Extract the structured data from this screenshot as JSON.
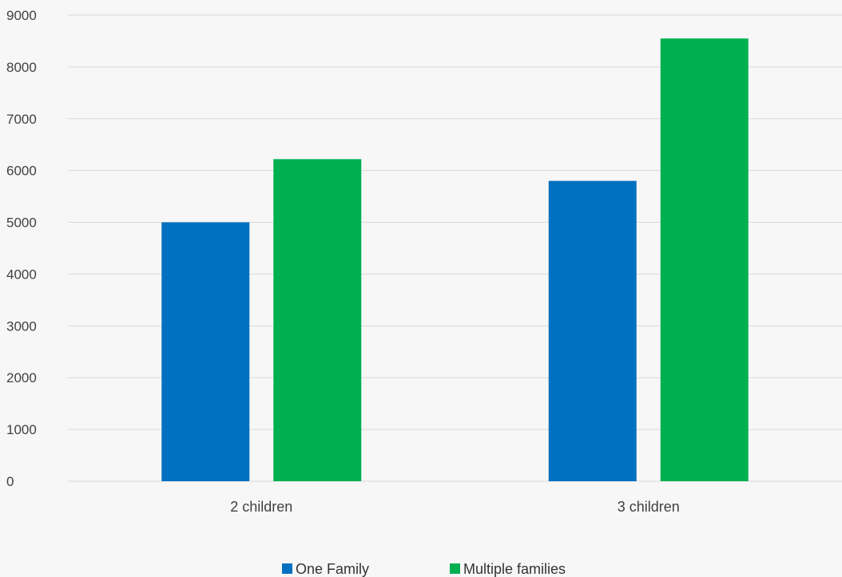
{
  "chart_data": {
    "type": "bar",
    "categories": [
      "2 children",
      "3 children"
    ],
    "series": [
      {
        "name": "One Family",
        "values": [
          5000,
          5800
        ],
        "color": "#0070c0"
      },
      {
        "name": "Multiple families",
        "values": [
          6220,
          8550
        ],
        "color": "#00b050"
      }
    ],
    "ylim": [
      0,
      9000
    ],
    "yticks": [
      "0",
      "1000",
      "2000",
      "3000",
      "4000",
      "5000",
      "6000",
      "7000",
      "8000",
      "9000"
    ],
    "grid": true,
    "legend_position": "bottom",
    "title": "",
    "xlabel": "",
    "ylabel": ""
  }
}
